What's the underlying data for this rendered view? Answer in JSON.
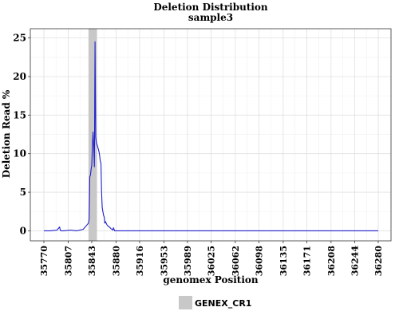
{
  "chart_data": {
    "type": "line",
    "title": "Deletion Distribution",
    "subtitle": "sample3",
    "xlabel": "genomex Position",
    "ylabel": "Deletion Read  %",
    "xlim": [
      35760,
      35290
    ],
    "ylim": [
      -1.3,
      26.2
    ],
    "x_ticks": [
      "35770",
      "35807",
      "35843",
      "35880",
      "35916",
      "35953",
      "35989",
      "36025",
      "36062",
      "36098",
      "36135",
      "36171",
      "36208",
      "36244",
      "36280"
    ],
    "x_tick_values": [
      35770,
      35807,
      35843,
      35880,
      35916,
      35953,
      35989,
      36025,
      36062,
      36098,
      36135,
      36171,
      36208,
      36244,
      36280
    ],
    "y_ticks": [
      "0",
      "5",
      "10",
      "15",
      "20",
      "25"
    ],
    "y_tick_values": [
      0,
      5,
      10,
      15,
      20,
      25
    ],
    "grid": true,
    "legend_position": "bottom",
    "colors": {
      "line": "#1f1fcc",
      "highlight": "#c8c8c8",
      "grid_major": "#e0e0e0",
      "grid_minor": "#f0f0f0"
    },
    "region": {
      "name": "GENEX_CR1",
      "start": 35838,
      "end": 35851
    },
    "series": [
      {
        "x": [
          35770,
          35780,
          35790,
          35794,
          35795,
          35796,
          35800,
          35810,
          35820,
          35830,
          35835,
          35838,
          35839,
          35840,
          35841,
          35842,
          35843,
          35844,
          35845,
          35846,
          35847,
          35848,
          35849,
          35850,
          35851,
          35852,
          35853,
          35854,
          35855,
          35856,
          35857,
          35858,
          35859,
          35860,
          35861,
          35862,
          35863,
          35864,
          35866,
          35868,
          35870,
          35872,
          35875,
          35876,
          35878,
          35880,
          35885,
          35890,
          35900,
          35920,
          35950,
          35980,
          36000,
          36050,
          36100,
          36150,
          36200,
          36250,
          36280
        ],
        "y": [
          0,
          0,
          0.1,
          0.5,
          0.1,
          0,
          0,
          0.1,
          0,
          0.2,
          0.7,
          1.0,
          1.6,
          7.0,
          7.2,
          8.0,
          8.5,
          11.0,
          12.8,
          11.0,
          8.3,
          24.5,
          12.2,
          11.5,
          11.2,
          10.9,
          10.6,
          10.3,
          9.8,
          9.0,
          8.8,
          5.0,
          3.0,
          2.5,
          2.0,
          1.8,
          1.0,
          1.2,
          0.8,
          0.6,
          0.5,
          0.3,
          0.1,
          0.4,
          0,
          0,
          0,
          0,
          0,
          0,
          0,
          0,
          0,
          0,
          0,
          0,
          0,
          0,
          0
        ]
      }
    ]
  }
}
